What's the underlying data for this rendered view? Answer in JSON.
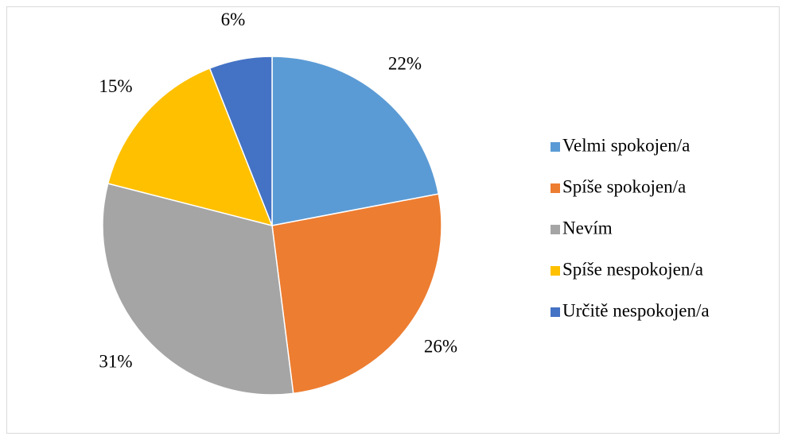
{
  "chart_data": {
    "type": "pie",
    "categories": [
      "Velmi spokojen/a",
      "Spíše spokojen/a",
      "Nevím",
      "Spíše nespokojen/a",
      "Určitě nespokojen/a"
    ],
    "values": [
      22,
      26,
      31,
      15,
      6
    ],
    "value_labels": [
      "22%",
      "26%",
      "31%",
      "15%",
      "6%"
    ],
    "colors": [
      "#5b9bd5",
      "#ed7d31",
      "#a5a5a5",
      "#ffc000",
      "#4472c4"
    ],
    "legend": "right"
  }
}
